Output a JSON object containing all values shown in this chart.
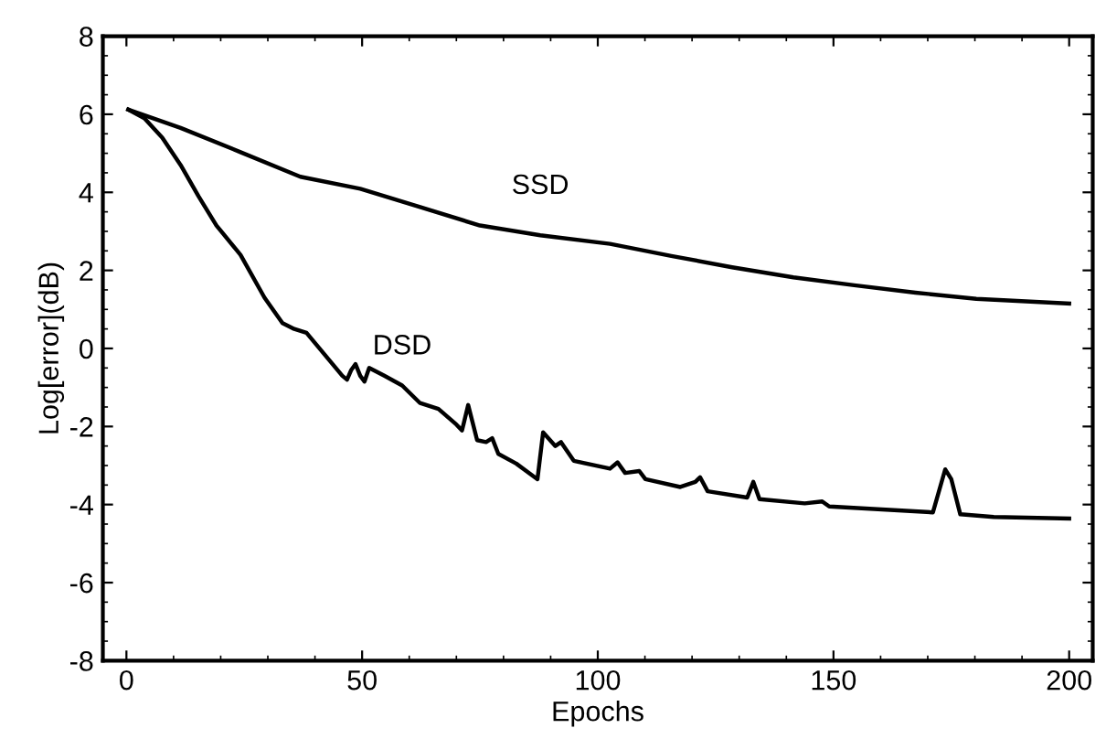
{
  "chart_data": {
    "type": "line",
    "xlabel": "Epochs",
    "ylabel": "Log[error](dB)",
    "xlim": [
      -5,
      205
    ],
    "ylim": [
      -8,
      8
    ],
    "xticks": [
      0,
      50,
      100,
      150,
      200
    ],
    "yticks": [
      -8,
      -6,
      -4,
      -2,
      0,
      2,
      4,
      6,
      8
    ],
    "grid": false,
    "legend": false,
    "marker": "none",
    "line_style": "solid",
    "series": [
      {
        "name": "SSD",
        "color": "#000000",
        "x": [
          0.4,
          11.5,
          24.2,
          36.9,
          49.6,
          62.3,
          75,
          87.8,
          102.6,
          115.6,
          128.5,
          141.5,
          154.4,
          167.4,
          180.3,
          200
        ],
        "values": [
          6.12,
          5.65,
          5.03,
          4.4,
          4.09,
          3.62,
          3.15,
          2.9,
          2.68,
          2.37,
          2.08,
          1.82,
          1.62,
          1.43,
          1.27,
          1.15
        ]
      },
      {
        "name": "DSD",
        "color": "#000000",
        "x": [
          0.4,
          3.8,
          7.6,
          11.5,
          15.3,
          19.1,
          24.2,
          29.3,
          33.1,
          35.6,
          38.2,
          42,
          45.8,
          46.8,
          47.7,
          48.6,
          49.6,
          50.5,
          51.5,
          54.7,
          58.5,
          62.3,
          66.2,
          70,
          71.2,
          72.5,
          74.4,
          76.3,
          77.6,
          78.9,
          82.7,
          87.2,
          88.4,
          91,
          92.2,
          94.9,
          102.6,
          104.2,
          105.8,
          108.8,
          110.1,
          117.5,
          120.7,
          121.7,
          123.3,
          131.7,
          133,
          134.3,
          143.9,
          147.6,
          149.1,
          171.1,
          173.7,
          175,
          176.9,
          184,
          200
        ],
        "values": [
          6.12,
          5.9,
          5.4,
          4.7,
          3.9,
          3.15,
          2.4,
          1.3,
          0.65,
          0.5,
          0.4,
          -0.15,
          -0.7,
          -0.8,
          -0.55,
          -0.4,
          -0.7,
          -0.85,
          -0.5,
          -0.7,
          -0.95,
          -1.4,
          -1.55,
          -1.95,
          -2.1,
          -1.45,
          -2.35,
          -2.4,
          -2.3,
          -2.7,
          -2.95,
          -3.35,
          -2.15,
          -2.5,
          -2.4,
          -2.88,
          -3.08,
          -2.92,
          -3.19,
          -3.14,
          -3.35,
          -3.55,
          -3.42,
          -3.3,
          -3.66,
          -3.82,
          -3.42,
          -3.86,
          -3.97,
          -3.92,
          -4.05,
          -4.2,
          -3.1,
          -3.35,
          -4.25,
          -4.32,
          -4.36
        ]
      }
    ]
  }
}
